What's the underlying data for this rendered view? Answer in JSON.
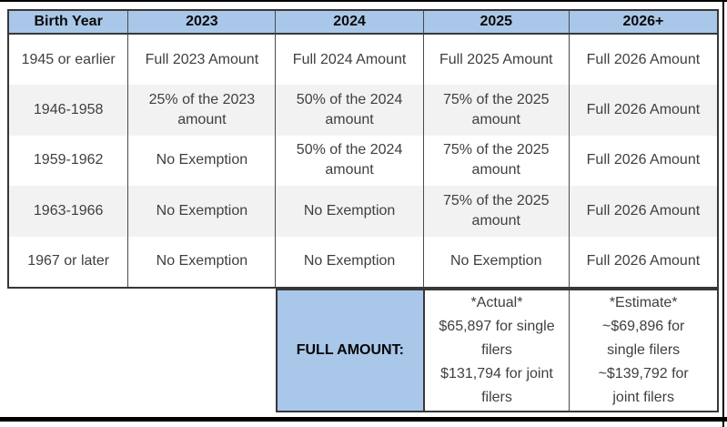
{
  "table": {
    "headers": [
      "Birth Year",
      "2023",
      "2024",
      "2025",
      "2026+"
    ],
    "rows": [
      [
        "1945 or earlier",
        "Full 2023 Amount",
        "Full 2024 Amount",
        "Full 2025 Amount",
        "Full 2026 Amount"
      ],
      [
        "1946-1958",
        "25% of the 2023\namount",
        "50% of the 2024\namount",
        "75% of the 2025\namount",
        "Full 2026 Amount"
      ],
      [
        "1959-1962",
        "No Exemption",
        "50% of the 2024\namount",
        "75% of the 2025\namount",
        "Full 2026 Amount"
      ],
      [
        "1963-1966",
        "No Exemption",
        "No Exemption",
        "75% of the 2025\namount",
        "Full 2026 Amount"
      ],
      [
        "1967 or later",
        "No Exemption",
        "No Exemption",
        "No Exemption",
        "Full 2026 Amount"
      ]
    ]
  },
  "footer": {
    "full_amount_label": "FULL AMOUNT:",
    "actual": "*Actual*\n$65,897 for single\nfilers\n$131,794 for joint\nfilers",
    "estimate": "*Estimate*\n~$69,896 for\nsingle filers\n~$139,792 for\njoint filers"
  },
  "colors": {
    "header_bg": "#A9C7E8",
    "stripe_bg": "#F2F2F2",
    "border_dark": "#383838",
    "text_body": "#3F3F3F",
    "bottom_bar": "#000000"
  }
}
